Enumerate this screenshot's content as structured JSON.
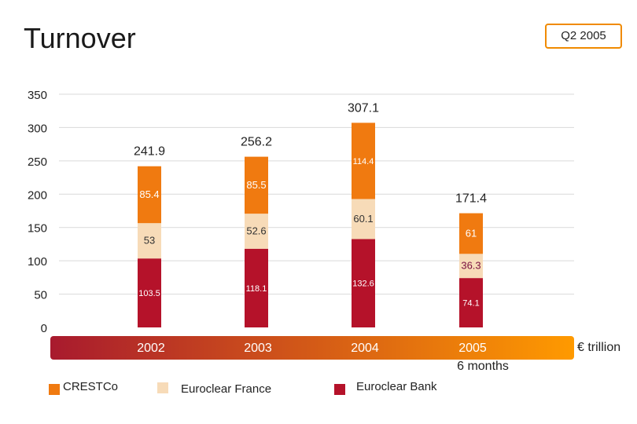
{
  "title": "Turnover",
  "period_badge": "Q2 2005",
  "unit_label": "€ trillion",
  "colors": {
    "crestco": "#f07a10",
    "euroclear_france": "#f7dbb8",
    "euroclear_bank": "#b5122a",
    "band_left": "#a81a2e",
    "band_right": "#ff9a00",
    "badge_border": "#f08a00"
  },
  "legend": [
    {
      "label": "CRESTCo",
      "color": "#f07a10"
    },
    {
      "label": "Euroclear France",
      "color": "#f7dbb8"
    },
    {
      "label": "Euroclear Bank",
      "color": "#b5122a"
    }
  ],
  "chart_data": {
    "type": "bar",
    "stacked": true,
    "categories": [
      "2002",
      "2003",
      "2004",
      "2005"
    ],
    "category_sublabels": [
      "",
      "",
      "",
      "6 months"
    ],
    "series": [
      {
        "name": "Euroclear Bank",
        "values": [
          103.5,
          118.1,
          132.6,
          74.1
        ],
        "labels": [
          "103.5",
          "118.1",
          "132.6",
          "74.1"
        ]
      },
      {
        "name": "Euroclear France",
        "values": [
          53,
          52.6,
          60.1,
          36.3
        ],
        "labels": [
          "53",
          "52.6",
          "60.1",
          "36.3"
        ]
      },
      {
        "name": "CRESTCo",
        "values": [
          85.4,
          85.5,
          114.4,
          61
        ],
        "labels": [
          "85.4",
          "85.5",
          "114.4",
          "61"
        ]
      }
    ],
    "totals": [
      "241.9",
      "256.2",
      "307.1",
      "171.4"
    ],
    "ylim": [
      0,
      350
    ],
    "yticks": [
      0,
      50,
      100,
      150,
      200,
      250,
      300,
      350
    ],
    "grid": true
  }
}
